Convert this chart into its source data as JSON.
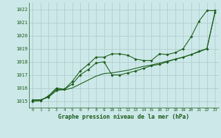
{
  "title": "Graphe pression niveau de la mer (hPa)",
  "bg_color": "#cce8e8",
  "grid_color": "#b0cccc",
  "line_color": "#1a5c1a",
  "marker_color": "#1a5c1a",
  "ylim": [
    1014.5,
    1022.5
  ],
  "xlim": [
    -0.5,
    23.5
  ],
  "yticks": [
    1015,
    1016,
    1017,
    1018,
    1019,
    1020,
    1021,
    1022
  ],
  "xticks": [
    0,
    1,
    2,
    3,
    4,
    5,
    6,
    7,
    8,
    9,
    10,
    11,
    12,
    13,
    14,
    15,
    16,
    17,
    18,
    19,
    20,
    21,
    22,
    23
  ],
  "series1_x": [
    0,
    1,
    2,
    3,
    4,
    5,
    6,
    7,
    8,
    9,
    10,
    11,
    12,
    13,
    14,
    15,
    16,
    17,
    18,
    19,
    20,
    21,
    22,
    23
  ],
  "series1_y": [
    1015.1,
    1015.1,
    1015.3,
    1015.8,
    1015.9,
    1016.5,
    1017.3,
    1017.8,
    1018.35,
    1018.35,
    1018.6,
    1018.6,
    1018.5,
    1018.2,
    1018.1,
    1018.1,
    1018.6,
    1018.55,
    1018.7,
    1019.0,
    1019.9,
    1021.1,
    1021.9,
    1021.9
  ],
  "series2_x": [
    0,
    1,
    2,
    3,
    4,
    5,
    6,
    7,
    8,
    9,
    10,
    11,
    12,
    13,
    14,
    15,
    16,
    17,
    18,
    19,
    20,
    21,
    22,
    23
  ],
  "series2_y": [
    1015.0,
    1015.05,
    1015.4,
    1016.0,
    1015.9,
    1016.3,
    1017.0,
    1017.4,
    1017.9,
    1018.0,
    1017.0,
    1017.0,
    1017.15,
    1017.3,
    1017.5,
    1017.7,
    1017.8,
    1018.0,
    1018.2,
    1018.35,
    1018.55,
    1018.8,
    1019.0,
    1021.75
  ],
  "series3_x": [
    0,
    1,
    2,
    3,
    4,
    5,
    6,
    7,
    8,
    9,
    10,
    11,
    12,
    13,
    14,
    15,
    16,
    17,
    18,
    19,
    20,
    21,
    22,
    23
  ],
  "series3_y": [
    1015.0,
    1015.05,
    1015.35,
    1015.9,
    1015.85,
    1016.0,
    1016.3,
    1016.6,
    1016.9,
    1017.1,
    1017.15,
    1017.25,
    1017.35,
    1017.5,
    1017.65,
    1017.75,
    1017.9,
    1018.05,
    1018.2,
    1018.35,
    1018.55,
    1018.75,
    1019.0,
    1021.7
  ]
}
